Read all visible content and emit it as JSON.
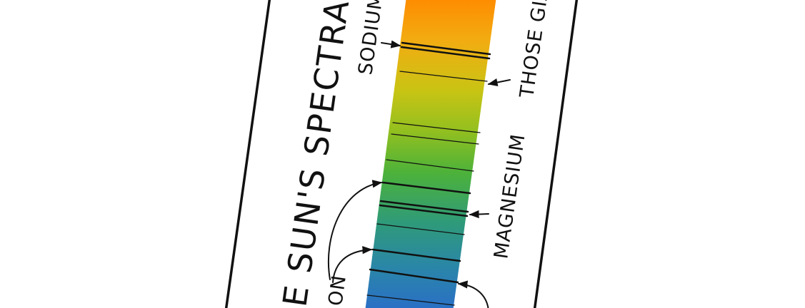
{
  "title": "E SUN'S SPECTRAL L",
  "labels": {
    "sodium": "SODIUM",
    "those_giant": "THOSE GIA",
    "magnesium": "MAGNESIUM",
    "iron": "ON"
  },
  "colors": {
    "ink": "#111111",
    "spectrum_top": "#ff8a00",
    "spectrum_yellow": "#c8c414",
    "spectrum_green": "#4cb23a",
    "spectrum_teal": "#2f9a7a",
    "spectrum_blue": "#2a74c8"
  }
}
